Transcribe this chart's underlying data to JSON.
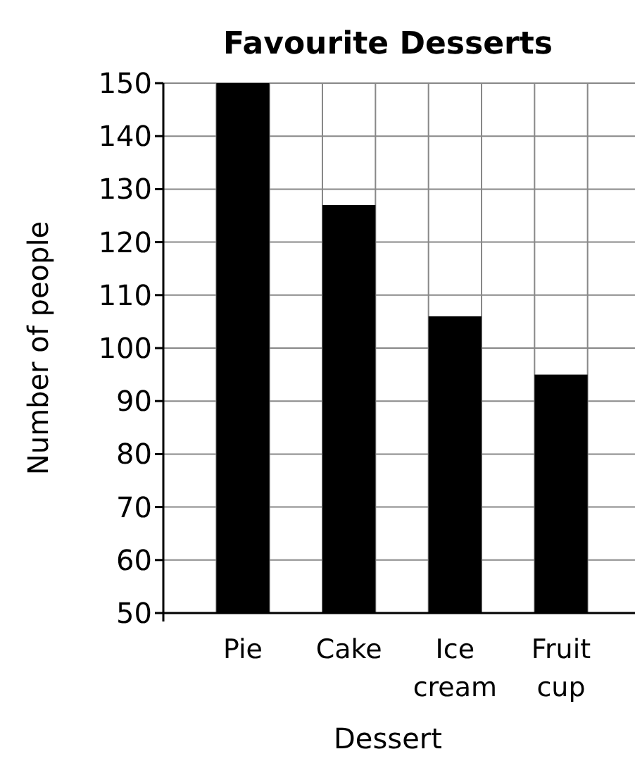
{
  "chart_data": {
    "type": "bar",
    "title": "Favourite Desserts",
    "xlabel": "Dessert",
    "ylabel": "Number of people",
    "categories": [
      "Pie",
      "Cake",
      "Ice cream",
      "Fruit cup"
    ],
    "values": [
      150,
      127,
      106,
      95
    ],
    "color": "#000000",
    "ylim": [
      50,
      150
    ],
    "yticks": [
      50,
      60,
      70,
      80,
      90,
      100,
      110,
      120,
      130,
      140,
      150
    ],
    "grid": true
  }
}
